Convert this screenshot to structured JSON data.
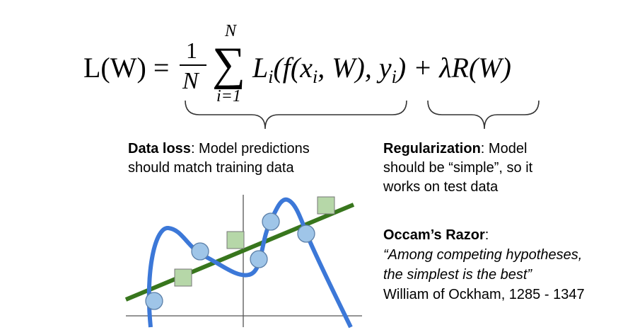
{
  "formula": {
    "lhs": "L(W) =",
    "frac_num": "1",
    "frac_den": "N",
    "sum_sign": "∑",
    "sum_top": "N",
    "sum_bottom": "i=1",
    "term": [
      "L",
      "i",
      "(f(x",
      "i",
      ", W), y",
      "i",
      ") + λR(W)"
    ]
  },
  "data_loss": {
    "heading": "Data loss",
    "lines": [
      ": Model predictions",
      "should match training data"
    ]
  },
  "regularization": {
    "heading": "Regularization",
    "lines": [
      ": Model",
      "should be “simple”, so it",
      "works on test data"
    ]
  },
  "occam": {
    "heading": "Occam’s Razor",
    "colon": ":",
    "quote": [
      "“Among competing hypotheses,",
      "the simplest is the best”"
    ],
    "attribution": "William of Ockham, 1285 - 1347"
  }
}
